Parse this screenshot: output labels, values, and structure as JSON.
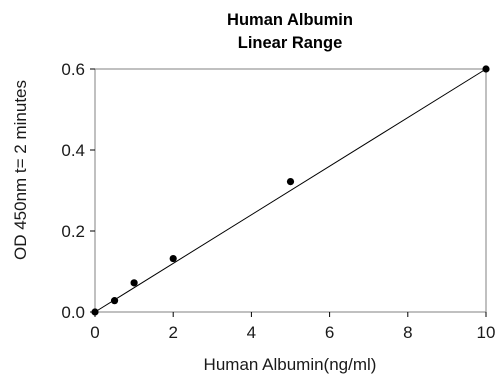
{
  "chart_data": {
    "type": "scatter",
    "title": [
      "Human  Albumin",
      "Linear Range"
    ],
    "xlabel": "Human  Albumin(ng/ml)",
    "ylabel": "OD 450nm  t= 2 minutes",
    "xlim": [
      0,
      10
    ],
    "ylim": [
      0,
      0.6
    ],
    "x_ticks": [
      "0",
      "2",
      "4",
      "6",
      "8",
      "10"
    ],
    "y_ticks": [
      "0.0",
      "0.2",
      "0.4",
      "0.6"
    ],
    "grid": false,
    "legend": "none",
    "series": [
      {
        "x": [
          0,
          0.5,
          1,
          2,
          5,
          10
        ],
        "y": [
          0.0,
          0.028,
          0.072,
          0.132,
          0.322,
          0.6
        ]
      }
    ],
    "trendline": {
      "x": [
        0,
        10
      ],
      "y": [
        0.0,
        0.6
      ]
    },
    "colors": {
      "points": "#000000",
      "trendline": "#000000",
      "frame": "#808080"
    }
  }
}
